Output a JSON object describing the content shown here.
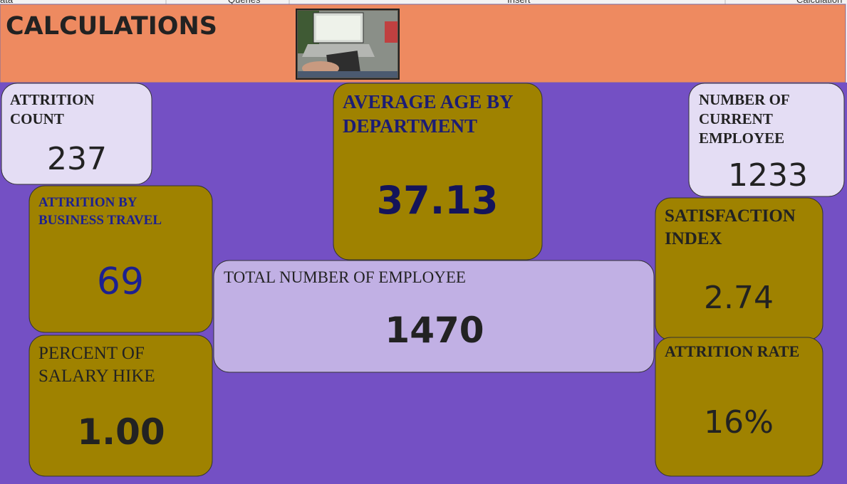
{
  "tabs": [
    "ata",
    "Queries",
    "Insert",
    "Calculation"
  ],
  "header": {
    "title": "CALCULATIONS"
  },
  "cards": [
    {
      "label": [
        "ATTRITION",
        "COUNT"
      ],
      "value": "237"
    },
    {
      "label": [
        "AVERAGE AGE BY",
        "DEPARTMENT"
      ],
      "value": "37.13"
    },
    {
      "label": [
        "NUMBER OF",
        "CURRENT",
        "EMPLOYEE"
      ],
      "value": "1233"
    },
    {
      "label": [
        "ATTRITION BY",
        "BUSINESS TRAVEL"
      ],
      "value": "69"
    },
    {
      "label": [
        "SATISFACTION",
        "INDEX"
      ],
      "value": "2.74"
    },
    {
      "label": [
        "TOTAL NUMBER OF EMPLOYEE"
      ],
      "value": "1470"
    },
    {
      "label": [
        "PERCENT OF",
        "SALARY HIKE"
      ],
      "value": "1.00"
    },
    {
      "label": [
        "ATTRITION RATE"
      ],
      "value": "16%"
    }
  ]
}
